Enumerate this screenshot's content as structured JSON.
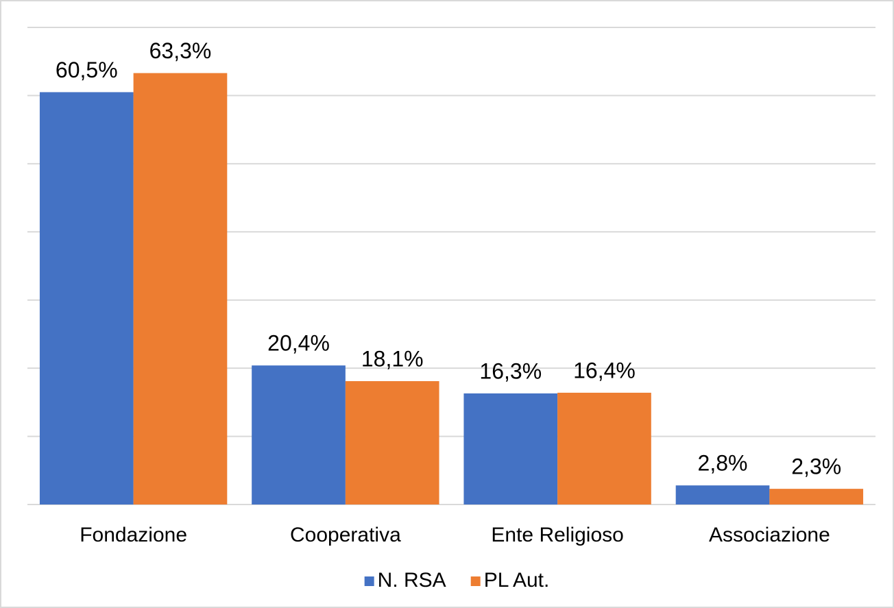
{
  "chart_data": {
    "type": "bar",
    "categories": [
      "Fondazione",
      "Cooperativa",
      "Ente Religioso",
      "Associazione"
    ],
    "series": [
      {
        "name": "N. RSA",
        "color": "#4472c4",
        "values": [
          60.5,
          20.4,
          16.3,
          2.8
        ],
        "value_labels": [
          "60,5%",
          "20,4%",
          "16,3%",
          "2,8%"
        ]
      },
      {
        "name": "PL Aut.",
        "color": "#ed7d31",
        "values": [
          63.3,
          18.1,
          16.4,
          2.3
        ],
        "value_labels": [
          "63,3%",
          "18,1%",
          "16,4%",
          "2,3%"
        ]
      }
    ],
    "ylim": [
      0,
      70
    ],
    "yticks": [
      0,
      10,
      20,
      30,
      40,
      50,
      60,
      70
    ],
    "grid": true,
    "legend": "bottom"
  }
}
